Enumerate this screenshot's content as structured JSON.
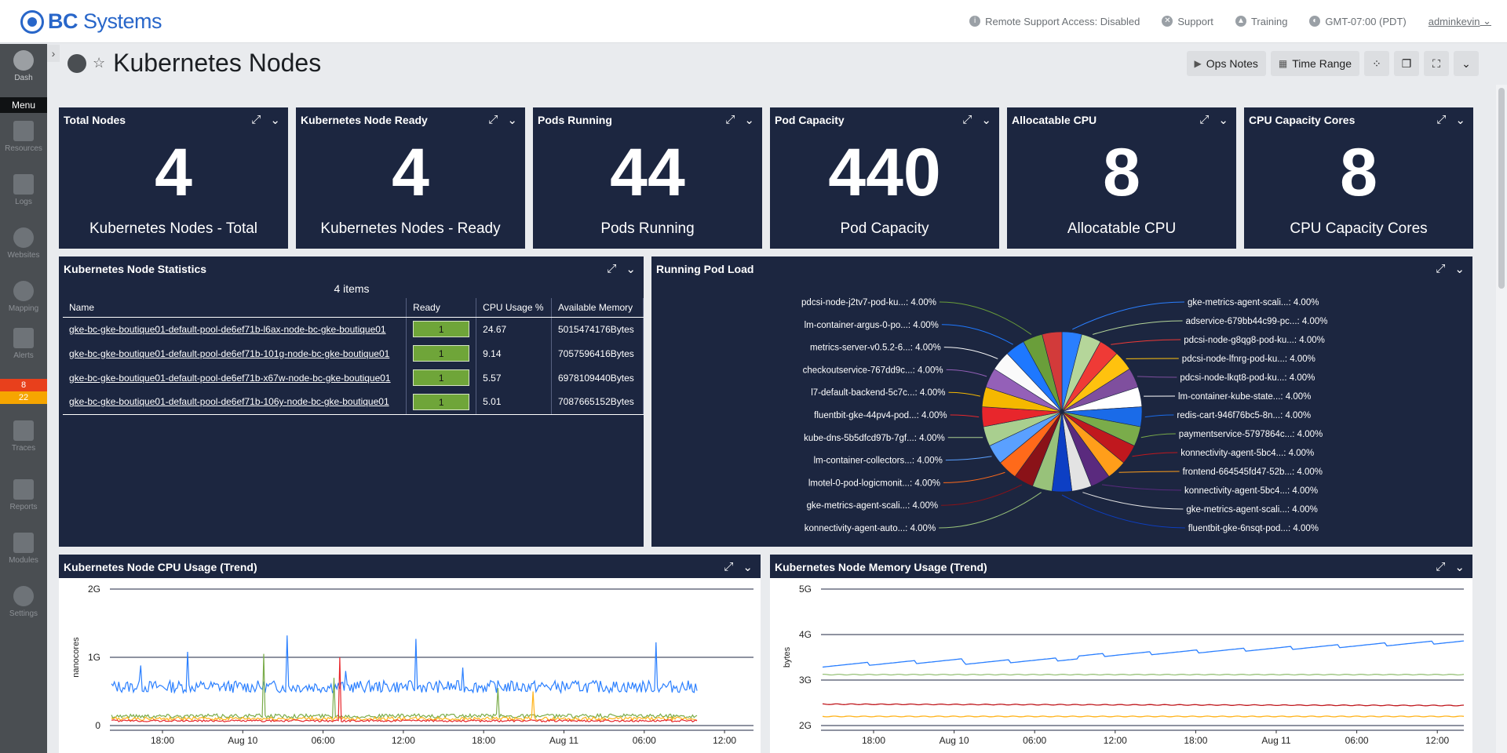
{
  "brand": {
    "bold": "BC",
    "rest": " Systems"
  },
  "topbar": {
    "remote_support": "Remote Support Access: Disabled",
    "support": "Support",
    "training": "Training",
    "timezone": "GMT-07:00 (PDT)",
    "user": "adminkevin"
  },
  "sidebar": {
    "dash": "Dash",
    "menu": "Menu",
    "resources": "Resources",
    "logs": "Logs",
    "websites": "Websites",
    "mapping": "Mapping",
    "alerts": "Alerts",
    "alert_count_critical": "8",
    "alert_count_warning": "22",
    "traces": "Traces",
    "reports": "Reports",
    "modules": "Modules",
    "settings": "Settings"
  },
  "page": {
    "title": "Kubernetes Nodes"
  },
  "toolbar": {
    "ops_notes": "Ops Notes",
    "time_range": "Time Range"
  },
  "big_numbers": [
    {
      "title": "Total Nodes",
      "value": "4",
      "label": "Kubernetes Nodes - Total"
    },
    {
      "title": "Kubernetes Node Ready",
      "value": "4",
      "label": "Kubernetes Nodes - Ready"
    },
    {
      "title": "Pods Running",
      "value": "44",
      "label": "Pods Running"
    },
    {
      "title": "Pod Capacity",
      "value": "440",
      "label": "Pod Capacity"
    },
    {
      "title": "Allocatable CPU",
      "value": "8",
      "label": "Allocatable CPU"
    },
    {
      "title": "CPU Capacity Cores",
      "value": "8",
      "label": "CPU Capacity Cores"
    }
  ],
  "node_stats": {
    "title": "Kubernetes Node Statistics",
    "count": "4 items",
    "columns": [
      "Name",
      "Ready",
      "CPU Usage %",
      "Available Memory"
    ],
    "rows": [
      {
        "name": "gke-bc-gke-boutique01-default-pool-de6ef71b-l6ax-node-bc-gke-boutique01",
        "ready": "1",
        "cpu": "24.67",
        "memory": "5015474176Bytes"
      },
      {
        "name": "gke-bc-gke-boutique01-default-pool-de6ef71b-101g-node-bc-gke-boutique01",
        "ready": "1",
        "cpu": "9.14",
        "memory": "7057596416Bytes"
      },
      {
        "name": "gke-bc-gke-boutique01-default-pool-de6ef71b-x67w-node-bc-gke-boutique01",
        "ready": "1",
        "cpu": "5.57",
        "memory": "6978109440Bytes"
      },
      {
        "name": "gke-bc-gke-boutique01-default-pool-de6ef71b-106y-node-bc-gke-boutique01",
        "ready": "1",
        "cpu": "5.01",
        "memory": "7087665152Bytes"
      }
    ]
  },
  "pod_load": {
    "title": "Running Pod Load",
    "chart_data": {
      "type": "pie",
      "slices": [
        {
          "label": "gke-metrics-agent-scali...: 4.00%",
          "value": 4,
          "color": "#2a7fff"
        },
        {
          "label": "adservice-679bb44c99-pc...: 4.00%",
          "value": 4,
          "color": "#b5d69a"
        },
        {
          "label": "pdcsi-node-g8qg8-pod-ku...: 4.00%",
          "value": 4,
          "color": "#ef3a36"
        },
        {
          "label": "pdcsi-node-lfnrg-pod-ku...: 4.00%",
          "value": 4,
          "color": "#ffc20e"
        },
        {
          "label": "pdcsi-node-lkqt8-pod-ku...: 4.00%",
          "value": 4,
          "color": "#7f4f9e"
        },
        {
          "label": "lm-container-kube-state...: 4.00%",
          "value": 4,
          "color": "#ffffff"
        },
        {
          "label": "redis-cart-946f76bc5-8n...: 4.00%",
          "value": 4,
          "color": "#1a6be8"
        },
        {
          "label": "paymentservice-5797864c...: 4.00%",
          "value": 4,
          "color": "#7aac4a"
        },
        {
          "label": "konnectivity-agent-5bc4...: 4.00%",
          "value": 4,
          "color": "#c0181e"
        },
        {
          "label": "frontend-664545fd47-52b...: 4.00%",
          "value": 4,
          "color": "#ff9e1a"
        },
        {
          "label": "konnectivity-agent-5bc4...: 4.00%",
          "value": 4,
          "color": "#5a2a7e"
        },
        {
          "label": "gke-metrics-agent-scali...: 4.00%",
          "value": 4,
          "color": "#e3e3e3"
        },
        {
          "label": "fluentbit-gke-6nsqt-pod...: 4.00%",
          "value": 4,
          "color": "#0d3fc4"
        },
        {
          "label": "konnectivity-agent-auto...: 4.00%",
          "value": 4,
          "color": "#98c27a"
        },
        {
          "label": "gke-metrics-agent-scali...: 4.00%",
          "value": 4,
          "color": "#8a1218"
        },
        {
          "label": "lmotel-0-pod-logicmonit...: 4.00%",
          "value": 4,
          "color": "#ff6a1a"
        },
        {
          "label": "lm-container-collectors...: 4.00%",
          "value": 4,
          "color": "#5aa0ff"
        },
        {
          "label": "kube-dns-5b5dfcd97b-7gf...: 4.00%",
          "value": 4,
          "color": "#a9cf8f"
        },
        {
          "label": "fluentbit-gke-44pv4-pod...: 4.00%",
          "value": 4,
          "color": "#e8262c"
        },
        {
          "label": "l7-default-backend-5c7c...: 4.00%",
          "value": 4,
          "color": "#f5b800"
        },
        {
          "label": "checkoutservice-767dd9c...: 4.00%",
          "value": 4,
          "color": "#9460b8"
        },
        {
          "label": "metrics-server-v0.5.2-6...: 4.00%",
          "value": 4,
          "color": "#fafafa"
        },
        {
          "label": "lm-container-argus-0-po...: 4.00%",
          "value": 4,
          "color": "#1e78ff"
        },
        {
          "label": "pdcsi-node-j2tv7-pod-ku...: 4.00%",
          "value": 4,
          "color": "#6a9e3a"
        },
        {
          "label": "",
          "value": 4,
          "color": "#d23a3a"
        }
      ]
    }
  },
  "cpu_trend": {
    "title": "Kubernetes Node CPU Usage (Trend)",
    "chart_data": {
      "type": "line",
      "ylabel": "nanocores",
      "yticks": [
        "2G",
        "1G",
        "0"
      ],
      "ylim": [
        0,
        2000000000
      ],
      "xticks": [
        "18:00",
        "Aug 10",
        "06:00",
        "12:00",
        "18:00",
        "Aug 11",
        "06:00",
        "12:00"
      ],
      "series": [
        {
          "color": "#2a7fff",
          "base": 570000000,
          "noise": 90000000,
          "spikes": [
            [
              0.05,
              0.88
            ],
            [
              0.13,
              1.08
            ],
            [
              0.3,
              1.32
            ],
            [
              0.52,
              1.27
            ],
            [
              0.93,
              1.22
            ],
            [
              0.6,
              0.85
            ],
            [
              0.4,
              0.8
            ]
          ]
        },
        {
          "color": "#7aac4a",
          "base": 140000000,
          "noise": 30000000,
          "spikes": [
            [
              0.26,
              1.05
            ],
            [
              0.38,
              0.7
            ],
            [
              0.66,
              0.55
            ]
          ]
        },
        {
          "color": "#ffb31a",
          "base": 100000000,
          "noise": 25000000,
          "spikes": [
            [
              0.72,
              0.5
            ]
          ]
        },
        {
          "color": "#e8262c",
          "base": 70000000,
          "noise": 15000000,
          "spikes": [
            [
              0.39,
              1.0
            ]
          ]
        }
      ]
    }
  },
  "mem_trend": {
    "title": "Kubernetes Node Memory Usage (Trend)",
    "chart_data": {
      "type": "line",
      "ylabel": "bytes",
      "yticks": [
        "5G",
        "4G",
        "3G",
        "2G"
      ],
      "ylim": [
        2000000000,
        5000000000
      ],
      "xticks": [
        "18:00",
        "Aug 10",
        "06:00",
        "12:00",
        "18:00",
        "Aug 11",
        "06:00",
        "12:00"
      ],
      "series": [
        {
          "color": "#2a7fff",
          "start": 3320000000,
          "end": 3850000000
        },
        {
          "color": "#98c27a",
          "start": 3120000000,
          "end": 3120000000
        },
        {
          "color": "#c0181e",
          "start": 2470000000,
          "end": 2440000000
        },
        {
          "color": "#ffb31a",
          "start": 2200000000,
          "end": 2200000000
        }
      ]
    }
  }
}
